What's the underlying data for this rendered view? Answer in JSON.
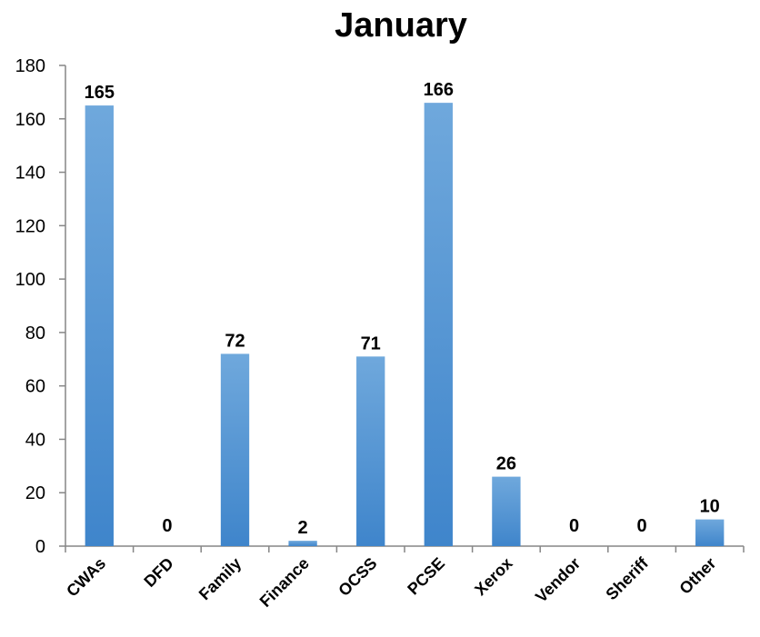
{
  "chart_data": {
    "type": "bar",
    "title": "January",
    "xlabel": "",
    "ylabel": "",
    "categories": [
      "CWAs",
      "DFD",
      "Family",
      "Finance",
      "OCSS",
      "PCSE",
      "Xerox",
      "Vendor",
      "Sheriff",
      "Other"
    ],
    "values": [
      165,
      0,
      72,
      2,
      71,
      166,
      26,
      0,
      0,
      10
    ],
    "ylim": [
      0,
      180
    ],
    "yticks": [
      0,
      20,
      40,
      60,
      80,
      100,
      120,
      140,
      160,
      180
    ],
    "grid": false,
    "legend": "none",
    "data_labels": true,
    "colors": {
      "bar_top": "#6fa8dc",
      "bar_bottom": "#3f85cb",
      "axis": "#868686"
    }
  }
}
